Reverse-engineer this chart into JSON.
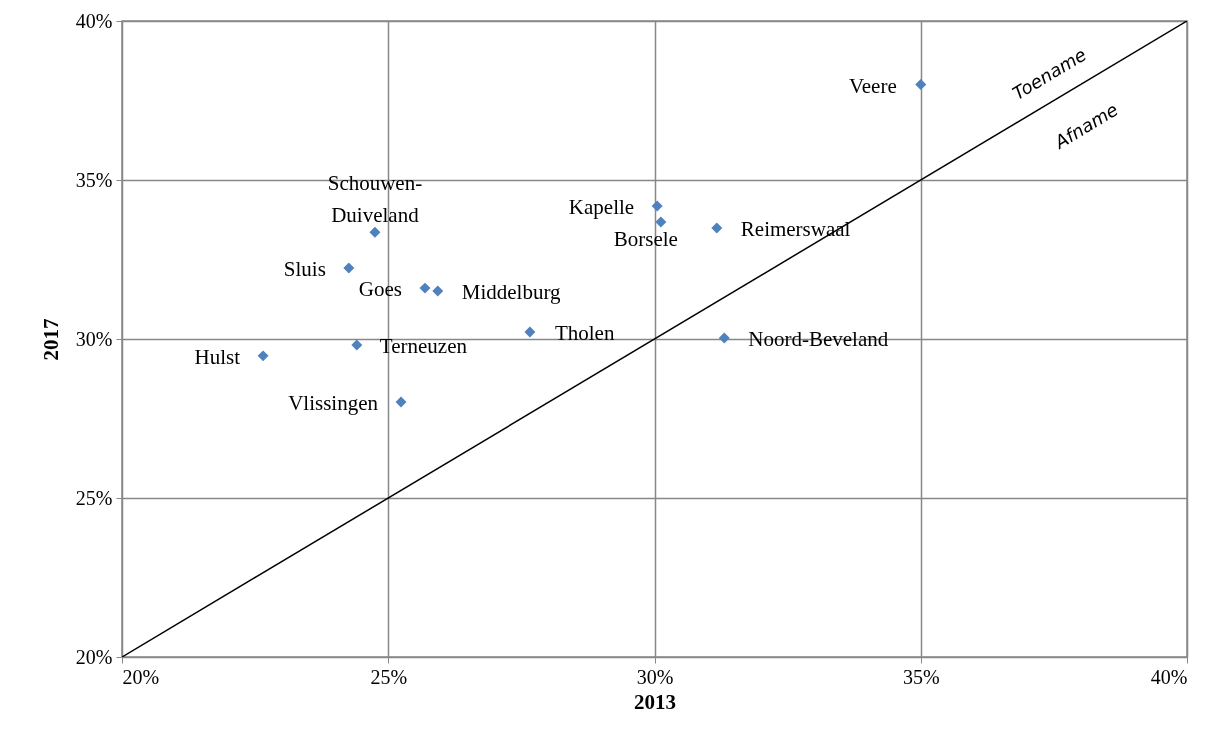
{
  "chart_data": {
    "type": "scatter",
    "xlabel": "2013",
    "ylabel": "2017",
    "xlim": [
      20,
      40
    ],
    "ylim": [
      20,
      40
    ],
    "xticks": [
      {
        "value": 20,
        "label": "20%"
      },
      {
        "value": 25,
        "label": "25%"
      },
      {
        "value": 30,
        "label": "30%"
      },
      {
        "value": 35,
        "label": "35%"
      },
      {
        "value": 40,
        "label": "40%"
      }
    ],
    "yticks": [
      {
        "value": 20,
        "label": "20%"
      },
      {
        "value": 25,
        "label": "25%"
      },
      {
        "value": 30,
        "label": "30%"
      },
      {
        "value": 35,
        "label": "35%"
      },
      {
        "value": 40,
        "label": "40%"
      }
    ],
    "grid": true,
    "series": [
      {
        "marker": "diamond",
        "color": "#4f81bd",
        "x": [
          35.0,
          24.75,
          30.05,
          30.12,
          31.17,
          24.26,
          25.69,
          25.93,
          27.66,
          31.31,
          22.65,
          24.41,
          25.24
        ],
        "values": [
          38.0,
          33.36,
          34.18,
          33.68,
          33.49,
          32.23,
          31.6,
          31.51,
          30.22,
          30.03,
          29.47,
          29.81,
          28.02
        ]
      },
      {
        "type": "line",
        "marker": "none",
        "color": "#000000",
        "x": [
          20,
          40
        ],
        "values": [
          20,
          40
        ]
      }
    ],
    "annotations": [
      {
        "text": "Veere",
        "x": 35.0,
        "y": 38.0
      },
      {
        "text": "Schouwen-Duiveland",
        "x": 24.75,
        "y": 33.36
      },
      {
        "text": "Kapelle",
        "x": 30.05,
        "y": 34.18
      },
      {
        "text": "Borsele",
        "x": 30.12,
        "y": 33.68
      },
      {
        "text": "Reimerswaal",
        "x": 31.17,
        "y": 33.49
      },
      {
        "text": "Sluis",
        "x": 24.26,
        "y": 32.23
      },
      {
        "text": "Goes",
        "x": 25.69,
        "y": 31.6
      },
      {
        "text": "Middelburg",
        "x": 25.93,
        "y": 31.51
      },
      {
        "text": "Tholen",
        "x": 27.66,
        "y": 30.22
      },
      {
        "text": "Noord-Beveland",
        "x": 31.31,
        "y": 30.03
      },
      {
        "text": "Hulst",
        "x": 22.65,
        "y": 29.47
      },
      {
        "text": "Terneuzen",
        "x": 24.41,
        "y": 29.81
      },
      {
        "text": "Vlissingen",
        "x": 25.24,
        "y": 28.02
      },
      "Toename",
      "Afname"
    ]
  }
}
